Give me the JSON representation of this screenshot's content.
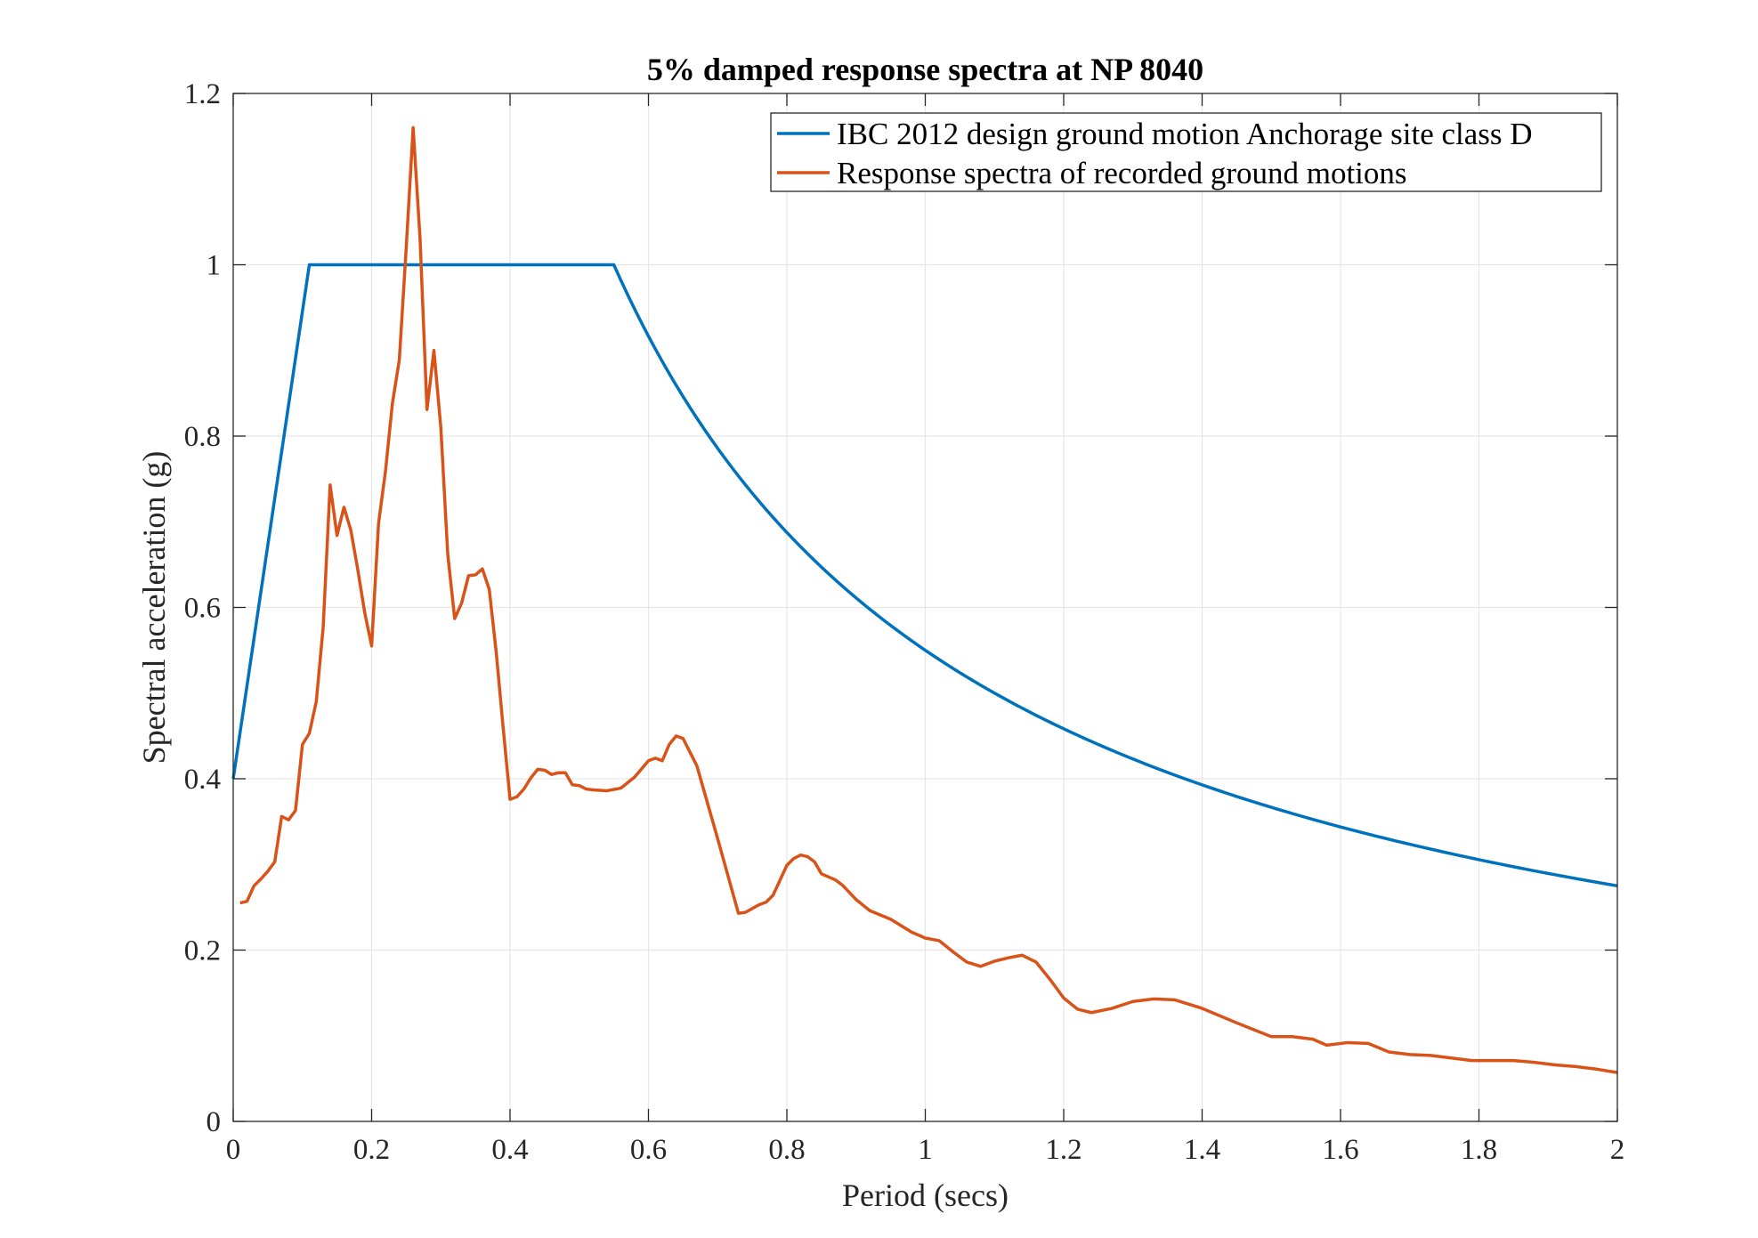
{
  "chart_data": {
    "type": "line",
    "title": "5% damped response spectra at NP 8040",
    "xlabel": "Period (secs)",
    "ylabel": "Spectral acceleration (g)",
    "xlim": [
      0,
      2
    ],
    "ylim": [
      0,
      1.2
    ],
    "xticks": [
      0,
      0.2,
      0.4,
      0.6,
      0.8,
      1,
      1.2,
      1.4,
      1.6,
      1.8,
      2
    ],
    "xtick_labels": [
      "0",
      "0.2",
      "0.4",
      "0.6",
      "0.8",
      "1",
      "1.2",
      "1.4",
      "1.6",
      "1.8",
      "2"
    ],
    "yticks": [
      0,
      0.2,
      0.4,
      0.6,
      0.8,
      1,
      1.2
    ],
    "ytick_labels": [
      "0",
      "0.2",
      "0.4",
      "0.6",
      "0.8",
      "1",
      "1.2"
    ],
    "grid": true,
    "legend_position": "top-right",
    "series": [
      {
        "name": "IBC 2012 design ground motion Anchorage site class D",
        "color": "#0072BD",
        "curve": "design-spectrum",
        "x": [
          0,
          0.11,
          0.55,
          0.6,
          0.7,
          0.8,
          0.9,
          1.0,
          1.1,
          1.2,
          1.3,
          1.4,
          1.5,
          1.6,
          1.7,
          1.8,
          1.9,
          2.0
        ],
        "y": [
          0.4,
          1.0,
          1.0,
          0.917,
          0.786,
          0.688,
          0.611,
          0.55,
          0.5,
          0.458,
          0.423,
          0.393,
          0.367,
          0.344,
          0.324,
          0.306,
          0.289,
          0.275
        ]
      },
      {
        "name": "Response spectra of recorded ground motions",
        "color": "#D95319",
        "curve": "recorded",
        "x": [
          0.01,
          0.02,
          0.03,
          0.04,
          0.05,
          0.06,
          0.07,
          0.08,
          0.09,
          0.1,
          0.11,
          0.12,
          0.13,
          0.14,
          0.15,
          0.16,
          0.17,
          0.18,
          0.19,
          0.2,
          0.21,
          0.22,
          0.23,
          0.24,
          0.25,
          0.26,
          0.27,
          0.28,
          0.29,
          0.3,
          0.31,
          0.32,
          0.33,
          0.34,
          0.35,
          0.36,
          0.37,
          0.38,
          0.39,
          0.4,
          0.41,
          0.42,
          0.43,
          0.44,
          0.45,
          0.46,
          0.47,
          0.48,
          0.49,
          0.5,
          0.51,
          0.52,
          0.54,
          0.56,
          0.58,
          0.6,
          0.61,
          0.62,
          0.63,
          0.64,
          0.65,
          0.67,
          0.7,
          0.73,
          0.74,
          0.76,
          0.77,
          0.78,
          0.8,
          0.81,
          0.82,
          0.83,
          0.84,
          0.85,
          0.87,
          0.88,
          0.9,
          0.92,
          0.95,
          0.98,
          1.0,
          1.02,
          1.04,
          1.06,
          1.08,
          1.1,
          1.12,
          1.14,
          1.16,
          1.18,
          1.2,
          1.22,
          1.24,
          1.27,
          1.3,
          1.33,
          1.36,
          1.4,
          1.45,
          1.5,
          1.53,
          1.56,
          1.58,
          1.61,
          1.64,
          1.67,
          1.7,
          1.73,
          1.76,
          1.79,
          1.82,
          1.85,
          1.88,
          1.91,
          1.94,
          1.97,
          2.0
        ],
        "y": [
          0.255,
          0.257,
          0.275,
          0.283,
          0.292,
          0.303,
          0.356,
          0.352,
          0.363,
          0.44,
          0.453,
          0.49,
          0.577,
          0.743,
          0.684,
          0.717,
          0.69,
          0.644,
          0.594,
          0.555,
          0.698,
          0.759,
          0.838,
          0.889,
          1.02,
          1.16,
          1.03,
          0.831,
          0.9,
          0.81,
          0.662,
          0.587,
          0.605,
          0.637,
          0.638,
          0.645,
          0.621,
          0.548,
          0.46,
          0.376,
          0.379,
          0.388,
          0.401,
          0.411,
          0.41,
          0.405,
          0.407,
          0.407,
          0.393,
          0.392,
          0.388,
          0.387,
          0.386,
          0.389,
          0.402,
          0.421,
          0.424,
          0.421,
          0.44,
          0.45,
          0.447,
          0.415,
          0.33,
          0.243,
          0.244,
          0.253,
          0.256,
          0.264,
          0.299,
          0.307,
          0.311,
          0.309,
          0.303,
          0.289,
          0.282,
          0.276,
          0.259,
          0.246,
          0.236,
          0.221,
          0.214,
          0.211,
          0.198,
          0.186,
          0.181,
          0.187,
          0.191,
          0.194,
          0.186,
          0.166,
          0.144,
          0.131,
          0.127,
          0.132,
          0.14,
          0.143,
          0.142,
          0.132,
          0.115,
          0.099,
          0.099,
          0.096,
          0.089,
          0.092,
          0.091,
          0.081,
          0.078,
          0.077,
          0.074,
          0.071,
          0.071,
          0.071,
          0.069,
          0.066,
          0.064,
          0.061,
          0.057
        ]
      }
    ]
  }
}
